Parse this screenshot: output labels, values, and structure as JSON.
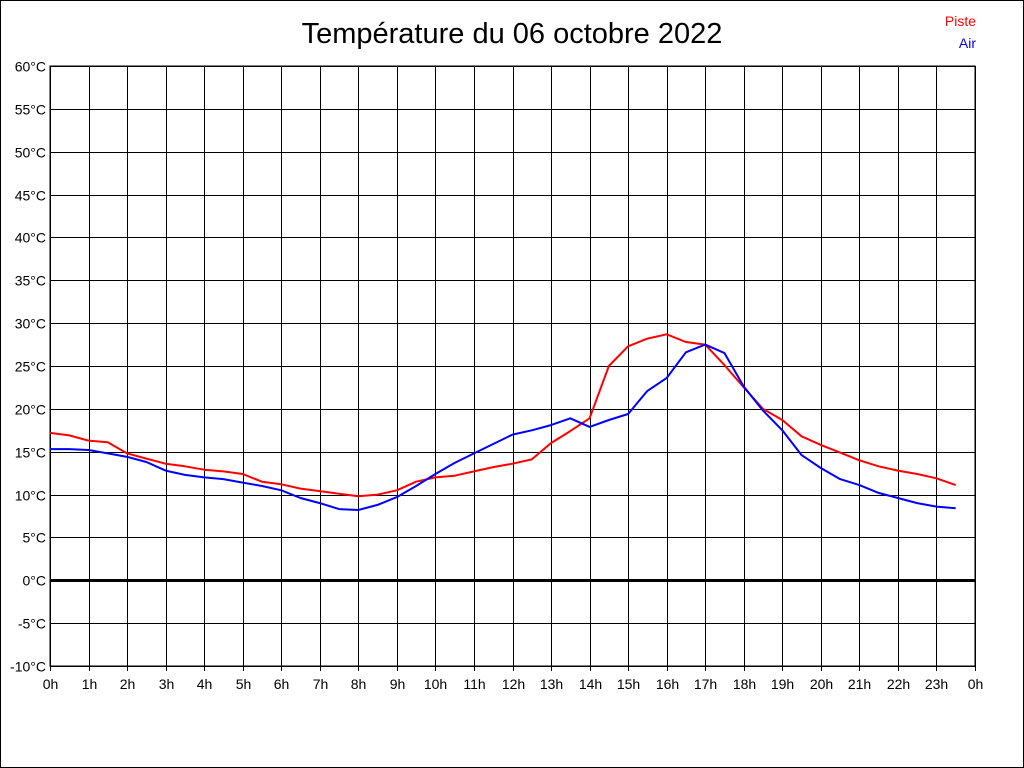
{
  "chart_data": {
    "type": "line",
    "title": "Température du 06 octobre 2022",
    "xlabel": "",
    "ylabel": "",
    "ylim": [
      -10,
      60
    ],
    "xlim": [
      0,
      24
    ],
    "grid": true,
    "legend_position": "top-right",
    "y_ticks": [
      "60°C",
      "55°C",
      "50°C",
      "45°C",
      "40°C",
      "35°C",
      "30°C",
      "25°C",
      "20°C",
      "15°C",
      "10°C",
      "5°C",
      "0°C",
      "-5°C",
      "-10°C"
    ],
    "y_tick_values": [
      60,
      55,
      50,
      45,
      40,
      35,
      30,
      25,
      20,
      15,
      10,
      5,
      0,
      -5,
      -10
    ],
    "x_ticks": [
      "0h",
      "1h",
      "2h",
      "3h",
      "4h",
      "5h",
      "6h",
      "7h",
      "8h",
      "9h",
      "10h",
      "11h",
      "12h",
      "13h",
      "14h",
      "15h",
      "16h",
      "17h",
      "18h",
      "19h",
      "20h",
      "21h",
      "22h",
      "23h",
      "0h"
    ],
    "x": [
      0,
      0.5,
      1,
      1.5,
      2,
      2.5,
      3,
      3.5,
      4,
      4.5,
      5,
      5.5,
      6,
      6.5,
      7,
      7.5,
      8,
      8.5,
      9,
      9.5,
      10,
      10.5,
      11,
      11.5,
      12,
      12.5,
      13,
      13.5,
      14,
      14.5,
      15,
      15.5,
      16,
      16.5,
      17,
      17.5,
      18,
      18.5,
      19,
      19.5,
      20,
      20.5,
      21,
      21.5,
      22,
      22.5,
      23,
      23.5
    ],
    "series": [
      {
        "name": "Piste",
        "color": "#ff0000",
        "values": [
          17.2,
          16.9,
          16.3,
          16.1,
          14.8,
          14.2,
          13.6,
          13.3,
          12.9,
          12.7,
          12.4,
          11.5,
          11.2,
          10.7,
          10.4,
          10.1,
          9.8,
          10.0,
          10.5,
          11.5,
          12.0,
          12.2,
          12.7,
          13.2,
          13.6,
          14.1,
          16.0,
          17.4,
          18.9,
          25.0,
          27.3,
          28.2,
          28.7,
          27.8,
          27.5,
          25.1,
          22.5,
          20.0,
          18.7,
          16.8,
          15.8,
          14.9,
          14.0,
          13.3,
          12.8,
          12.4,
          11.9,
          11.1
        ]
      },
      {
        "name": "Air",
        "color": "#0000ff",
        "values": [
          15.3,
          15.3,
          15.2,
          14.8,
          14.4,
          13.8,
          12.8,
          12.3,
          12.0,
          11.8,
          11.4,
          11.0,
          10.5,
          9.6,
          9.0,
          8.3,
          8.2,
          8.8,
          9.7,
          11.0,
          12.4,
          13.7,
          14.8,
          15.9,
          17.0,
          17.5,
          18.1,
          18.9,
          17.9,
          18.7,
          19.4,
          22.1,
          23.6,
          26.6,
          27.5,
          26.5,
          22.6,
          19.8,
          17.5,
          14.6,
          13.1,
          11.8,
          11.1,
          10.2,
          9.6,
          9.0,
          8.6,
          8.4
        ]
      }
    ]
  }
}
